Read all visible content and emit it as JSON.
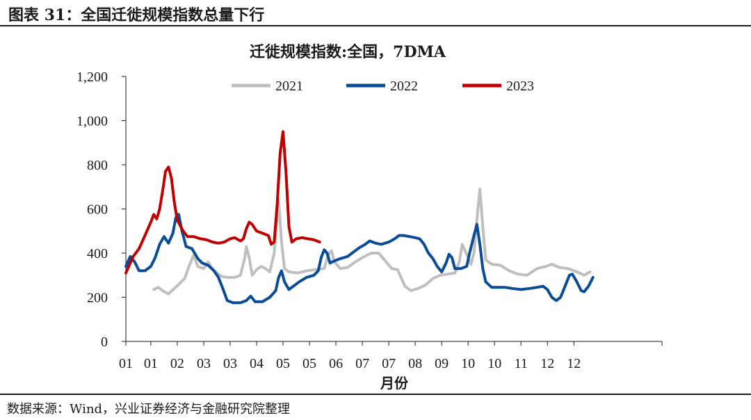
{
  "header": {
    "title": "图表 31：全国迁徙规模指数总量下行"
  },
  "footer": {
    "source": "数据来源：Wind，兴业证券经济与金融研究院整理"
  },
  "chart_data": {
    "type": "line",
    "title": "迁徙规模指数:全国，7DMA",
    "xlabel": "月份",
    "ylabel": "",
    "ylim": [
      0,
      1200
    ],
    "yticks": [
      0,
      200,
      400,
      600,
      800,
      1000,
      1200
    ],
    "ytick_labels": [
      "0",
      "200",
      "400",
      "600",
      "800",
      "1,000",
      "1,200"
    ],
    "x_domain": [
      1,
      366
    ],
    "x_ticks": [
      {
        "x": 1,
        "label": "01"
      },
      {
        "x": 18,
        "label": "01"
      },
      {
        "x": 36,
        "label": "02"
      },
      {
        "x": 54,
        "label": "03"
      },
      {
        "x": 72,
        "label": "03"
      },
      {
        "x": 90,
        "label": "04"
      },
      {
        "x": 108,
        "label": "05"
      },
      {
        "x": 126,
        "label": "05"
      },
      {
        "x": 144,
        "label": "06"
      },
      {
        "x": 162,
        "label": "07"
      },
      {
        "x": 180,
        "label": "07"
      },
      {
        "x": 198,
        "label": "08"
      },
      {
        "x": 216,
        "label": "09"
      },
      {
        "x": 234,
        "label": "10"
      },
      {
        "x": 252,
        "label": "10"
      },
      {
        "x": 270,
        "label": "11"
      },
      {
        "x": 288,
        "label": "12"
      },
      {
        "x": 306,
        "label": "12"
      }
    ],
    "grid": false,
    "legend_position": "top",
    "series": [
      {
        "name": "2021",
        "color": "#bfbfbf",
        "points": [
          [
            20,
            235
          ],
          [
            23,
            245
          ],
          [
            26,
            230
          ],
          [
            30,
            215
          ],
          [
            34,
            240
          ],
          [
            38,
            265
          ],
          [
            41,
            285
          ],
          [
            44,
            340
          ],
          [
            47,
            390
          ],
          [
            50,
            340
          ],
          [
            54,
            330
          ],
          [
            57,
            360
          ],
          [
            61,
            320
          ],
          [
            66,
            295
          ],
          [
            70,
            290
          ],
          [
            75,
            290
          ],
          [
            79,
            300
          ],
          [
            82,
            380
          ],
          [
            83,
            430
          ],
          [
            85,
            380
          ],
          [
            87,
            300
          ],
          [
            90,
            325
          ],
          [
            93,
            340
          ],
          [
            96,
            330
          ],
          [
            99,
            315
          ],
          [
            102,
            400
          ],
          [
            104,
            560
          ],
          [
            105,
            640
          ],
          [
            107,
            450
          ],
          [
            109,
            330
          ],
          [
            112,
            315
          ],
          [
            118,
            310
          ],
          [
            124,
            320
          ],
          [
            130,
            325
          ],
          [
            136,
            330
          ],
          [
            139,
            395
          ],
          [
            141,
            410
          ],
          [
            143,
            360
          ],
          [
            147,
            330
          ],
          [
            152,
            335
          ],
          [
            156,
            355
          ],
          [
            162,
            380
          ],
          [
            168,
            400
          ],
          [
            173,
            400
          ],
          [
            177,
            370
          ],
          [
            182,
            330
          ],
          [
            186,
            325
          ],
          [
            191,
            250
          ],
          [
            195,
            230
          ],
          [
            200,
            240
          ],
          [
            205,
            255
          ],
          [
            210,
            285
          ],
          [
            215,
            300
          ],
          [
            220,
            305
          ],
          [
            225,
            310
          ],
          [
            228,
            360
          ],
          [
            230,
            440
          ],
          [
            232,
            410
          ],
          [
            236,
            350
          ],
          [
            238,
            400
          ],
          [
            240,
            550
          ],
          [
            242,
            690
          ],
          [
            244,
            520
          ],
          [
            246,
            370
          ],
          [
            250,
            350
          ],
          [
            256,
            345
          ],
          [
            262,
            320
          ],
          [
            268,
            305
          ],
          [
            274,
            300
          ],
          [
            281,
            330
          ],
          [
            287,
            340
          ],
          [
            291,
            350
          ],
          [
            296,
            335
          ],
          [
            302,
            330
          ],
          [
            306,
            320
          ],
          [
            310,
            310
          ],
          [
            313,
            300
          ],
          [
            317,
            315
          ]
        ]
      },
      {
        "name": "2022",
        "color": "#0a4d96",
        "points": [
          [
            1,
            340
          ],
          [
            4,
            385
          ],
          [
            7,
            360
          ],
          [
            10,
            320
          ],
          [
            14,
            320
          ],
          [
            18,
            340
          ],
          [
            21,
            380
          ],
          [
            24,
            440
          ],
          [
            27,
            475
          ],
          [
            30,
            445
          ],
          [
            33,
            490
          ],
          [
            35,
            560
          ],
          [
            37,
            575
          ],
          [
            39,
            505
          ],
          [
            42,
            430
          ],
          [
            46,
            420
          ],
          [
            50,
            375
          ],
          [
            53,
            355
          ],
          [
            57,
            345
          ],
          [
            61,
            320
          ],
          [
            64,
            290
          ],
          [
            67,
            240
          ],
          [
            70,
            185
          ],
          [
            74,
            175
          ],
          [
            79,
            175
          ],
          [
            83,
            185
          ],
          [
            86,
            205
          ],
          [
            89,
            180
          ],
          [
            94,
            180
          ],
          [
            99,
            200
          ],
          [
            103,
            230
          ],
          [
            105,
            290
          ],
          [
            107,
            320
          ],
          [
            109,
            270
          ],
          [
            112,
            235
          ],
          [
            115,
            250
          ],
          [
            119,
            270
          ],
          [
            124,
            290
          ],
          [
            129,
            300
          ],
          [
            132,
            320
          ],
          [
            134,
            380
          ],
          [
            136,
            415
          ],
          [
            138,
            400
          ],
          [
            140,
            355
          ],
          [
            143,
            365
          ],
          [
            147,
            375
          ],
          [
            152,
            385
          ],
          [
            156,
            405
          ],
          [
            160,
            425
          ],
          [
            164,
            440
          ],
          [
            167,
            455
          ],
          [
            171,
            445
          ],
          [
            175,
            440
          ],
          [
            180,
            450
          ],
          [
            184,
            465
          ],
          [
            187,
            480
          ],
          [
            190,
            480
          ],
          [
            194,
            475
          ],
          [
            198,
            470
          ],
          [
            201,
            465
          ],
          [
            204,
            440
          ],
          [
            207,
            400
          ],
          [
            210,
            375
          ],
          [
            213,
            340
          ],
          [
            216,
            315
          ],
          [
            219,
            355
          ],
          [
            221,
            395
          ],
          [
            223,
            380
          ],
          [
            225,
            330
          ],
          [
            229,
            330
          ],
          [
            233,
            340
          ],
          [
            235,
            400
          ],
          [
            238,
            480
          ],
          [
            240,
            530
          ],
          [
            242,
            440
          ],
          [
            244,
            330
          ],
          [
            246,
            270
          ],
          [
            250,
            245
          ],
          [
            255,
            245
          ],
          [
            259,
            245
          ],
          [
            264,
            240
          ],
          [
            270,
            235
          ],
          [
            276,
            240
          ],
          [
            281,
            245
          ],
          [
            285,
            250
          ],
          [
            288,
            235
          ],
          [
            291,
            200
          ],
          [
            294,
            185
          ],
          [
            297,
            200
          ],
          [
            300,
            250
          ],
          [
            303,
            300
          ],
          [
            305,
            305
          ],
          [
            308,
            270
          ],
          [
            311,
            230
          ],
          [
            313,
            225
          ],
          [
            316,
            250
          ],
          [
            319,
            290
          ]
        ]
      },
      {
        "name": "2023",
        "color": "#c00000",
        "points": [
          [
            1,
            310
          ],
          [
            3,
            340
          ],
          [
            6,
            385
          ],
          [
            10,
            420
          ],
          [
            14,
            480
          ],
          [
            18,
            540
          ],
          [
            20,
            575
          ],
          [
            22,
            555
          ],
          [
            24,
            600
          ],
          [
            26,
            680
          ],
          [
            28,
            770
          ],
          [
            30,
            790
          ],
          [
            32,
            740
          ],
          [
            34,
            630
          ],
          [
            36,
            550
          ],
          [
            40,
            500
          ],
          [
            43,
            475
          ],
          [
            47,
            475
          ],
          [
            52,
            465
          ],
          [
            56,
            460
          ],
          [
            60,
            450
          ],
          [
            64,
            445
          ],
          [
            68,
            450
          ],
          [
            72,
            465
          ],
          [
            75,
            470
          ],
          [
            79,
            455
          ],
          [
            81,
            465
          ],
          [
            83,
            510
          ],
          [
            85,
            540
          ],
          [
            87,
            530
          ],
          [
            90,
            500
          ],
          [
            94,
            490
          ],
          [
            98,
            480
          ],
          [
            100,
            440
          ],
          [
            102,
            450
          ],
          [
            104,
            620
          ],
          [
            106,
            850
          ],
          [
            108,
            950
          ],
          [
            110,
            770
          ],
          [
            112,
            520
          ],
          [
            114,
            450
          ],
          [
            117,
            465
          ],
          [
            121,
            470
          ],
          [
            125,
            465
          ],
          [
            129,
            460
          ],
          [
            133,
            450
          ]
        ]
      }
    ]
  }
}
